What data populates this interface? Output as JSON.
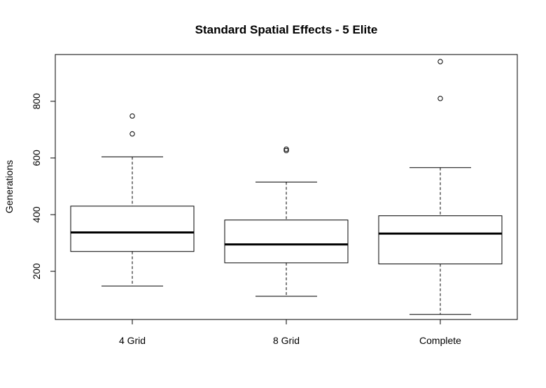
{
  "chart_data": {
    "type": "boxplot",
    "title": "Standard Spatial Effects - 5 Elite",
    "xlabel": "",
    "ylabel": "Generations",
    "categories": [
      "4 Grid",
      "8 Grid",
      "Complete"
    ],
    "yticks": [
      200,
      400,
      600,
      800
    ],
    "ylim": [
      30,
      965
    ],
    "grid": false,
    "legend": "none",
    "boxes": [
      {
        "category": "4 Grid",
        "whisker_low": 148,
        "q1": 270,
        "median": 337,
        "q3": 430,
        "whisker_high": 604,
        "outliers": [
          685,
          748
        ]
      },
      {
        "category": "8 Grid",
        "whisker_low": 112,
        "q1": 230,
        "median": 295,
        "q3": 381,
        "whisker_high": 515,
        "outliers": [
          626,
          631
        ]
      },
      {
        "category": "Complete",
        "whisker_low": 48,
        "q1": 226,
        "median": 333,
        "q3": 396,
        "whisker_high": 566,
        "outliers": [
          810,
          940
        ]
      }
    ]
  }
}
